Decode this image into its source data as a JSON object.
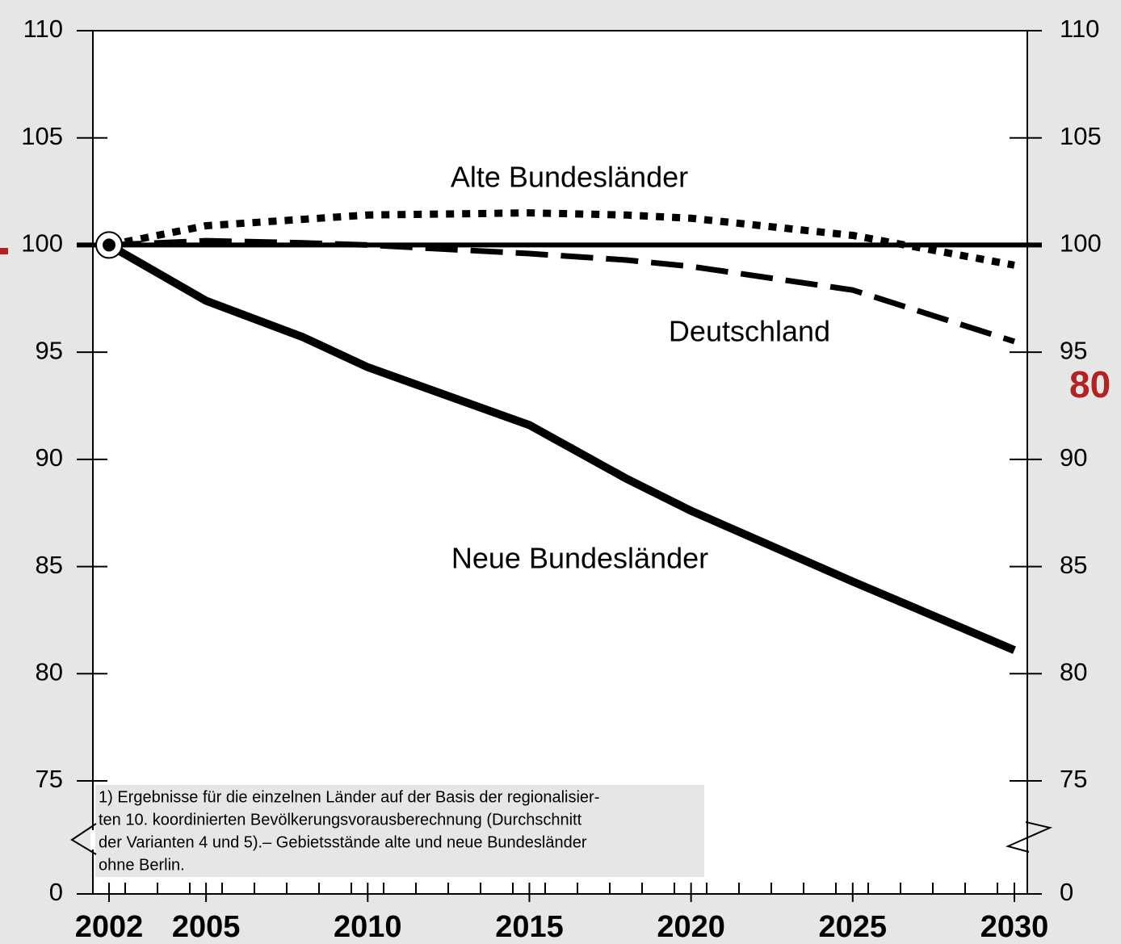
{
  "chart_data": {
    "type": "line",
    "x": [
      2002,
      2005,
      2008,
      2010,
      2015,
      2018,
      2020,
      2025,
      2030
    ],
    "series": [
      {
        "name": "Alte Bundesländer",
        "color": "#000000",
        "style": "dotted",
        "values": [
          100,
          100.9,
          101.2,
          101.4,
          101.5,
          101.4,
          101.25,
          100.45,
          99.06
        ]
      },
      {
        "name": "Deutschland",
        "color": "#000000",
        "style": "dashed",
        "values": [
          100,
          100.2,
          100.1,
          100,
          99.6,
          99.3,
          99,
          97.9,
          95.5
        ]
      },
      {
        "name": "Neue Bundesländer",
        "color": "#000000",
        "style": "solid",
        "values": [
          100,
          97.4,
          95.7,
          94.3,
          91.6,
          89.1,
          87.6,
          84.3,
          81.1
        ]
      }
    ],
    "xlim": [
      2001.5,
      2030.4
    ],
    "xticks": [
      2002,
      2005,
      2010,
      2015,
      2020,
      2025,
      2030
    ],
    "ylim": [
      75,
      110
    ],
    "yticks": [
      0,
      75,
      80,
      85,
      90,
      95,
      100,
      105,
      110
    ],
    "axis_break": true,
    "reference_line": 100,
    "annotation": "80",
    "footnote": [
      "1) Ergebnisse für die einzelnen Länder auf der Basis der regionalisier-",
      "ten 10. koordinierten Bevölkerungsvorausberechnung (Durchschnitt",
      "der Varianten 4 und 5).– Gebietsstände alte und neue Bundesländer",
      "ohne Berlin."
    ]
  }
}
